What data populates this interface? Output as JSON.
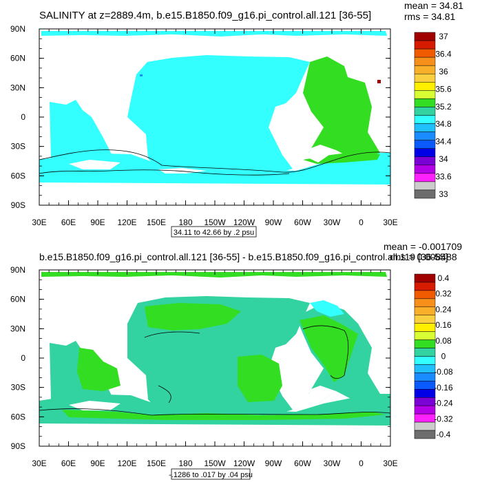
{
  "chart_data": [
    {
      "type": "heatmap",
      "title": "SALINITY at z=2889.4m, b.e15.B1850.f09_g16.pi_control.all.121 [36-55]",
      "stats": {
        "mean": "mean = 34.81",
        "rms": "rms = 34.81"
      },
      "range_label": "34.11 to 42.66 by .2 psu",
      "x_ticks": [
        "30E",
        "60E",
        "90E",
        "120E",
        "150E",
        "180",
        "150W",
        "120W",
        "90W",
        "60W",
        "30W",
        "0",
        "30E"
      ],
      "y_ticks": [
        "90N",
        "60N",
        "30N",
        "0",
        "30S",
        "60S",
        "90S"
      ],
      "colorbar": {
        "labels": [
          "37",
          "36.4",
          "36",
          "35.6",
          "35.2",
          "34.8",
          "34.4",
          "34",
          "33.6",
          "33"
        ],
        "colors": [
          "#a00000",
          "#d61b00",
          "#f05a00",
          "#f7901a",
          "#faaf2a",
          "#fad040",
          "#fff000",
          "#d7ff33",
          "#33dd22",
          "#32d3a0",
          "#34ffff",
          "#20c0ff",
          "#1b8cff",
          "#0a5aff",
          "#0000e6",
          "#7a00d6",
          "#b400e6",
          "#ff22ff",
          "#cccccc",
          "#6e6e6e"
        ]
      },
      "dominant_fields": {
        "pacific_indian": 34.7,
        "atlantic": 35.0
      }
    },
    {
      "type": "heatmap",
      "title": "b.e15.B1850.f09_g16.pi_control.all.121 [36-55] - b.e15.B1850.f09_g16.pi_control.all.119 [36-55]",
      "stats": {
        "mean": "mean = -0.001709",
        "rms": "rms = 0.008488"
      },
      "range_label": "-.1286 to .017 by .04 psu",
      "x_ticks": [
        "30E",
        "60E",
        "90E",
        "120E",
        "150E",
        "180",
        "150W",
        "120W",
        "90W",
        "60W",
        "30W",
        "0",
        "30E"
      ],
      "y_ticks": [
        "90N",
        "60N",
        "30N",
        "0",
        "30S",
        "60S",
        "90S"
      ],
      "colorbar": {
        "labels": [
          "0.4",
          "0.32",
          "0.24",
          "0.16",
          "0.08",
          "0",
          "-0.08",
          "-0.16",
          "-0.24",
          "-0.32",
          "-0.4"
        ],
        "colors": [
          "#a00000",
          "#d61b00",
          "#f05a00",
          "#f7901a",
          "#faaf2a",
          "#fad040",
          "#fff000",
          "#d7ff33",
          "#33dd22",
          "#32d3a0",
          "#34ffff",
          "#20c0ff",
          "#1b8cff",
          "#0a5aff",
          "#0000e6",
          "#7a00d6",
          "#b400e6",
          "#ff22ff",
          "#cccccc",
          "#6e6e6e"
        ]
      },
      "dominant_fields": {
        "background": -0.02,
        "positive_regions": 0.02
      }
    }
  ]
}
